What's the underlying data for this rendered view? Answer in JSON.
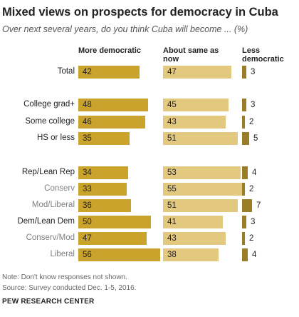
{
  "colors": {
    "more": "#c9a32c",
    "same": "#e3c97f",
    "less": "#9c7d27"
  },
  "chart_data": {
    "type": "bar",
    "title": "Mixed views on prospects for democracy in Cuba",
    "subtitle": "Over next several years, do you think Cuba will become ... (%)",
    "series_headers": [
      "More democratic",
      "About same as now",
      "Less democratic"
    ],
    "series": [
      {
        "name": "More democratic",
        "values": [
          42,
          48,
          46,
          35,
          34,
          33,
          36,
          50,
          47,
          56
        ]
      },
      {
        "name": "About same as now",
        "values": [
          47,
          45,
          43,
          51,
          53,
          55,
          51,
          41,
          43,
          38
        ]
      },
      {
        "name": "Less democratic",
        "values": [
          3,
          3,
          2,
          5,
          4,
          2,
          7,
          3,
          2,
          4
        ]
      }
    ],
    "categories": [
      "Total",
      "College grad+",
      "Some college",
      "HS or less",
      "Rep/Lean Rep",
      "Conserv",
      "Mod/Liberal",
      "Dem/Lean Dem",
      "Conserv/Mod",
      "Liberal"
    ],
    "category_style": [
      "main",
      "main",
      "main",
      "main",
      "main",
      "sub",
      "sub",
      "main",
      "sub",
      "sub"
    ]
  },
  "notes": {
    "note": "Note: Don't know responses not shown.",
    "source": "Source: Survey conducted Dec. 1-5, 2016.",
    "org": "PEW RESEARCH CENTER"
  }
}
